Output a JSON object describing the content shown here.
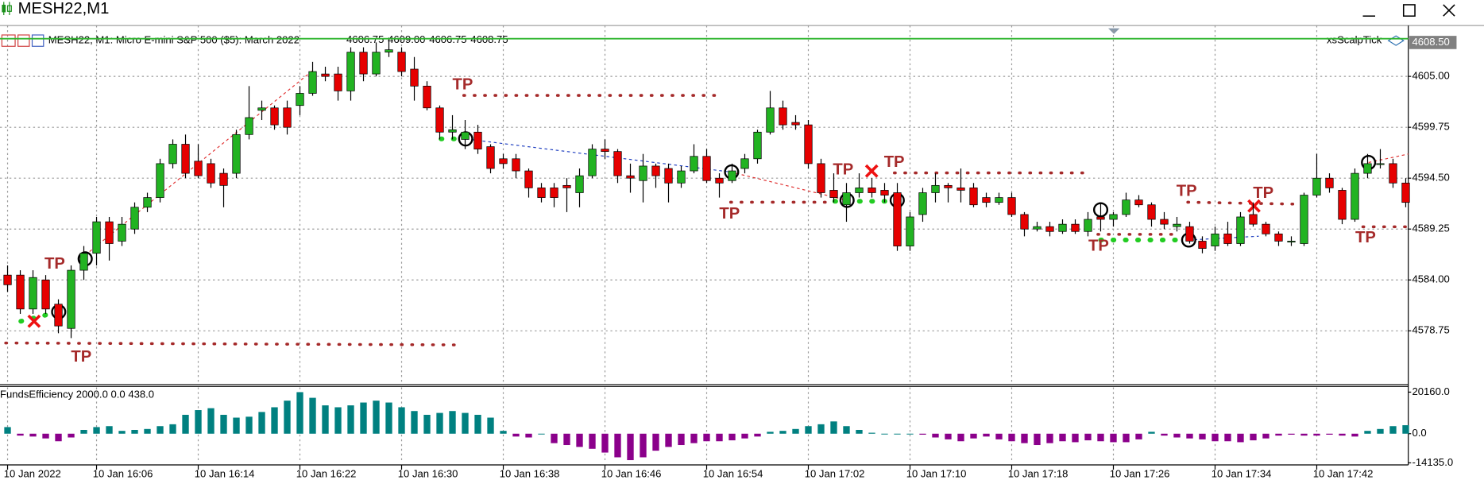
{
  "window": {
    "title": "MESH22,M1"
  },
  "chart_data": [
    {
      "type": "candlestick",
      "title": "MESH22, M1:  Micro E-mini S&P 500 ($5): March 2022",
      "ohlc_labels": [
        "4606.75",
        "4609.00",
        "4606.75",
        "4608.75"
      ],
      "indicator_name": "xsScalpTick",
      "signal_label": "TP",
      "categories": [
        "10 Jan 2022",
        null,
        null,
        null,
        null,
        null,
        null,
        "10 Jan 16:06",
        null,
        null,
        null,
        null,
        null,
        null,
        null,
        "10 Jan 16:14",
        null,
        null,
        null,
        null,
        null,
        null,
        null,
        "10 Jan 16:22",
        null,
        null,
        null,
        null,
        null,
        null,
        null,
        "10 Jan 16:30",
        null,
        null,
        null,
        null,
        null,
        null,
        null,
        "10 Jan 16:38",
        null,
        null,
        null,
        null,
        null,
        null,
        null,
        "10 Jan 16:46",
        null,
        null,
        null,
        null,
        null,
        null,
        null,
        "10 Jan 16:54",
        null,
        null,
        null,
        null,
        null,
        null,
        null,
        "10 Jan 17:02",
        null,
        null,
        null,
        null,
        null,
        null,
        null,
        "10 Jan 17:10",
        null,
        null,
        null,
        null,
        null,
        null,
        null,
        "10 Jan 17:18",
        null,
        null,
        null,
        null,
        null,
        null,
        null,
        "10 Jan 17:26",
        null,
        null,
        null,
        null,
        null,
        null,
        null,
        "10 Jan 17:34",
        null,
        null,
        null,
        null,
        null,
        null,
        null,
        "10 Jan 17:42",
        null,
        null,
        null,
        null,
        null,
        null,
        null
      ],
      "ohlc": [
        [
          4584.5,
          4585.5,
          4582.75,
          4583.5
        ],
        [
          4584.5,
          4585,
          4580.5,
          4581
        ],
        [
          4581,
          4585,
          4580.5,
          4584.25
        ],
        [
          4584,
          4584.5,
          4580.5,
          4581
        ],
        [
          4581.5,
          4582,
          4578.5,
          4579.25
        ],
        [
          4579,
          4585.5,
          4578,
          4585
        ],
        [
          4585,
          4587.5,
          4584,
          4586.75
        ],
        [
          4586.75,
          4590.5,
          4585.5,
          4590
        ],
        [
          4590,
          4590.5,
          4586,
          4587.75
        ],
        [
          4588,
          4590.5,
          4587.5,
          4589.75
        ],
        [
          4589.25,
          4592,
          4588.75,
          4591.5
        ],
        [
          4591.5,
          4593,
          4591,
          4592.5
        ],
        [
          4592.5,
          4596.5,
          4592,
          4596
        ],
        [
          4596,
          4598.5,
          4595.5,
          4598
        ],
        [
          4598,
          4599,
          4594.5,
          4595
        ],
        [
          4596.25,
          4598,
          4594.5,
          4594.75
        ],
        [
          4596,
          4596.5,
          4593.5,
          4594
        ],
        [
          4595,
          4595.5,
          4591.5,
          4593.75
        ],
        [
          4595,
          4599.5,
          4594.5,
          4599
        ],
        [
          4599,
          4604,
          4598.5,
          4600.75
        ],
        [
          4601.5,
          4602.5,
          4600.5,
          4601.75
        ],
        [
          4601.75,
          4602,
          4599.5,
          4600
        ],
        [
          4601.75,
          4602.5,
          4599,
          4599.75
        ],
        [
          4602,
          4604,
          4601,
          4603.25
        ],
        [
          4603.25,
          4606.5,
          4603,
          4605.5
        ],
        [
          4605.25,
          4606,
          4604.5,
          4605
        ],
        [
          4605.25,
          4606,
          4602.5,
          4603.5
        ],
        [
          4603.5,
          4608,
          4602.5,
          4607.5
        ],
        [
          4607.5,
          4608,
          4604.5,
          4605.25
        ],
        [
          4605.25,
          4608.5,
          4605,
          4607.5
        ],
        [
          4607.5,
          4609,
          4607,
          4607.75
        ],
        [
          4607.5,
          4608,
          4605,
          4605.5
        ],
        [
          4605.75,
          4607,
          4602.5,
          4604
        ],
        [
          4604,
          4604.5,
          4601.5,
          4601.75
        ],
        [
          4601.75,
          4602,
          4598.5,
          4599.25
        ],
        [
          4599.25,
          4601,
          4598.5,
          4599.5
        ],
        [
          4598.5,
          4600.5,
          4597.5,
          4599.25
        ],
        [
          4599.25,
          4600,
          4597,
          4597.5
        ],
        [
          4597.75,
          4598,
          4595,
          4595.5
        ],
        [
          4596.5,
          4597,
          4595.5,
          4596
        ],
        [
          4596.5,
          4597,
          4594.5,
          4595.25
        ],
        [
          4595.25,
          4595.5,
          4592.5,
          4593.5
        ],
        [
          4593.5,
          4594,
          4592,
          4592.5
        ],
        [
          4593.5,
          4594,
          4591.5,
          4592.5
        ],
        [
          4593.75,
          4594.5,
          4591,
          4593.5
        ],
        [
          4593,
          4595.5,
          4591.5,
          4594.75
        ],
        [
          4594.75,
          4598,
          4594.5,
          4597.5
        ],
        [
          4597.5,
          4598.5,
          4596.5,
          4597.25
        ],
        [
          4597.25,
          4597.5,
          4594,
          4594.75
        ],
        [
          4594.75,
          4596,
          4593,
          4594.5
        ],
        [
          4594.25,
          4597,
          4592,
          4595.75
        ],
        [
          4595.75,
          4596,
          4593.5,
          4594.75
        ],
        [
          4595.5,
          4596,
          4592,
          4594
        ],
        [
          4594,
          4595.75,
          4593.5,
          4595.25
        ],
        [
          4595.25,
          4598,
          4595,
          4596.75
        ],
        [
          4596.75,
          4597.5,
          4594,
          4594.25
        ],
        [
          4594.5,
          4595,
          4592.5,
          4594
        ],
        [
          4594.25,
          4596,
          4594,
          4595.25
        ],
        [
          4595.5,
          4597,
          4595,
          4596.5
        ],
        [
          4596.5,
          4599.5,
          4596,
          4599.25
        ],
        [
          4599.25,
          4603.5,
          4599,
          4601.75
        ],
        [
          4601.75,
          4602.5,
          4599.5,
          4600
        ],
        [
          4600.25,
          4601,
          4599.5,
          4600
        ],
        [
          4600,
          4600.5,
          4595.5,
          4596
        ],
        [
          4596,
          4596.5,
          4592.5,
          4593
        ],
        [
          4593.25,
          4595,
          4592,
          4592.5
        ],
        [
          4591.75,
          4594,
          4590,
          4593
        ],
        [
          4593,
          4595,
          4592.5,
          4593.5
        ],
        [
          4593.5,
          4594.5,
          4592.5,
          4593
        ],
        [
          4593.25,
          4594,
          4592,
          4592.75
        ],
        [
          4593,
          4594,
          4587,
          4587.5
        ],
        [
          4587.5,
          4591,
          4587,
          4590.5
        ],
        [
          4590.75,
          4593.5,
          4590,
          4593
        ],
        [
          4593,
          4595,
          4592,
          4593.75
        ],
        [
          4593.75,
          4594,
          4592,
          4593.5
        ],
        [
          4593.5,
          4595.5,
          4592,
          4593.25
        ],
        [
          4593.5,
          4594,
          4591.5,
          4591.75
        ],
        [
          4592.5,
          4593,
          4591.5,
          4592
        ],
        [
          4592,
          4593,
          4591.75,
          4592.5
        ],
        [
          4592.5,
          4593,
          4590.5,
          4590.75
        ],
        [
          4590.75,
          4591,
          4588.5,
          4589.25
        ],
        [
          4589.25,
          4590,
          4589,
          4589.5
        ],
        [
          4589.5,
          4590,
          4588.5,
          4589
        ],
        [
          4589,
          4590.25,
          4588.75,
          4589.75
        ],
        [
          4589.75,
          4590.25,
          4588.75,
          4589
        ],
        [
          4589,
          4591,
          4588.5,
          4590.25
        ],
        [
          4590.5,
          4592,
          4589,
          4590.25
        ],
        [
          4590.25,
          4591,
          4589.5,
          4590.75
        ],
        [
          4590.75,
          4593,
          4590.5,
          4592.25
        ],
        [
          4592.25,
          4592.75,
          4591.5,
          4591.75
        ],
        [
          4591.75,
          4592,
          4589.5,
          4590.25
        ],
        [
          4590.25,
          4591,
          4589.25,
          4589.75
        ],
        [
          4589.5,
          4590.5,
          4589,
          4589.75
        ],
        [
          4589.5,
          4590,
          4587.75,
          4588
        ],
        [
          4588,
          4588.5,
          4586.75,
          4587.25
        ],
        [
          4587.5,
          4589.5,
          4587,
          4588.75
        ],
        [
          4588.75,
          4590,
          4587.5,
          4587.75
        ],
        [
          4587.75,
          4591,
          4587.5,
          4590.5
        ],
        [
          4590.75,
          4592,
          4589.5,
          4589.75
        ],
        [
          4589.75,
          4590,
          4588.5,
          4588.75
        ],
        [
          4588.75,
          4589,
          4587.5,
          4588
        ],
        [
          4588,
          4588.5,
          4587.5,
          4588
        ],
        [
          4587.75,
          4593,
          4587.5,
          4592.75
        ],
        [
          4592.75,
          4597,
          4592.5,
          4594.5
        ],
        [
          4594.5,
          4595,
          4593,
          4593.5
        ],
        [
          4593.25,
          4593.5,
          4589.75,
          4590.25
        ],
        [
          4590.25,
          4595.5,
          4590,
          4595
        ],
        [
          4595,
          4597,
          4594.5,
          4596
        ],
        [
          4596,
          4597.5,
          4595.5,
          4596
        ],
        [
          4596,
          4596.5,
          4593.5,
          4594
        ],
        [
          4594,
          4594.5,
          4591.5,
          4592
        ]
      ],
      "up_color": "#22b322",
      "down_color": "#e60000",
      "wick_color": "#000000",
      "ylim": [
        4573.4,
        4610.25
      ],
      "yticks": [
        {
          "value": 4605,
          "label": "4605.00"
        },
        {
          "value": 4599.75,
          "label": "4599.75"
        },
        {
          "value": 4594.5,
          "label": "4594.50"
        },
        {
          "value": 4589.25,
          "label": "4589.25"
        },
        {
          "value": 4584,
          "label": "4584.00"
        },
        {
          "value": 4578.75,
          "label": "4578.75"
        }
      ],
      "grid": true,
      "last_price": {
        "value": 4608.5,
        "label": "4608.50"
      }
    },
    {
      "type": "bar",
      "title": "FundsEfficiency 2000.0 0.0 438.0",
      "values": [
        3210,
        -920,
        -1370,
        -2290,
        -3660,
        -1830,
        1830,
        3210,
        3660,
        1370,
        1830,
        2290,
        3660,
        4580,
        9160,
        11450,
        12370,
        9160,
        7790,
        8240,
        10530,
        12820,
        16030,
        20150,
        17400,
        13740,
        12820,
        13740,
        15110,
        16030,
        15110,
        12820,
        10990,
        9160,
        10080,
        10990,
        10080,
        9160,
        7790,
        1370,
        -1370,
        -1830,
        0,
        -4580,
        -5500,
        -6410,
        -7330,
        -9160,
        -11450,
        -12820,
        -11450,
        -8240,
        -6410,
        -5500,
        -4580,
        -3660,
        -3660,
        -3210,
        -2290,
        -1370,
        920,
        1370,
        2290,
        3660,
        4580,
        5950,
        3660,
        1830,
        460,
        0,
        0,
        0,
        -460,
        -1830,
        -2750,
        -3660,
        -2290,
        -1370,
        -2750,
        -3660,
        -4580,
        -5500,
        -4580,
        -3660,
        -4120,
        -3210,
        -3660,
        -4120,
        -4120,
        -2750,
        920,
        -920,
        -1830,
        -2290,
        -2750,
        -3660,
        -3660,
        -4120,
        -3210,
        -2290,
        -920,
        -460,
        -920,
        -920,
        -460,
        -920,
        -1370,
        1370,
        2290,
        3660,
        4120
      ],
      "positive_color": "#008080",
      "negative_color": "#8b008b",
      "ylim": [
        -14200,
        22450
      ],
      "yticks": [
        {
          "value": 20160,
          "label": "20160.0"
        },
        {
          "value": 0,
          "label": "0.0"
        },
        {
          "value": -14135,
          "label": "-14135.0"
        }
      ]
    }
  ]
}
